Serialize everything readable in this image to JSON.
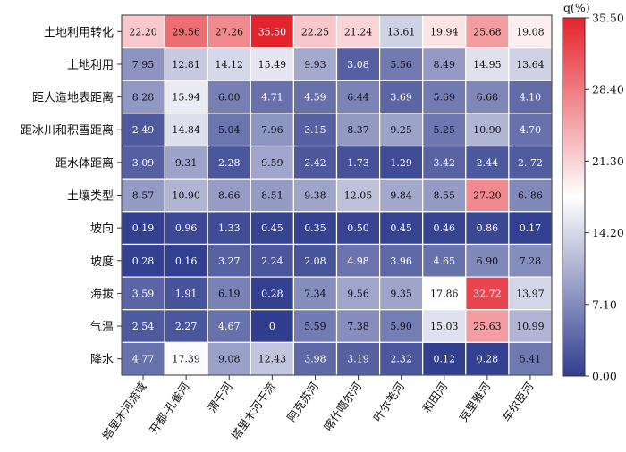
{
  "chart_data": {
    "type": "heatmap",
    "rows": [
      "土地利用转化",
      "土地利用",
      "距人造地表距离",
      "距冰川和积雪距离",
      "距水体距离",
      "土壤类型",
      "坡向",
      "坡度",
      "海拔",
      "气温",
      "降水"
    ],
    "columns": [
      "塔里木河流域",
      "开都-孔雀河",
      "渭干河",
      "塔里木河干流",
      "阿克苏河",
      "喀什噶尔河",
      "叶尔羌河",
      "和田河",
      "克里雅河",
      "车尔臣河"
    ],
    "values": [
      [
        22.2,
        29.56,
        27.26,
        35.5,
        22.25,
        21.24,
        13.61,
        19.94,
        25.68,
        19.08
      ],
      [
        7.95,
        12.81,
        14.12,
        15.49,
        9.93,
        3.08,
        5.56,
        8.49,
        14.95,
        13.64
      ],
      [
        8.28,
        15.94,
        6.0,
        4.71,
        4.59,
        6.44,
        3.69,
        5.69,
        6.68,
        4.1
      ],
      [
        2.49,
        14.84,
        5.04,
        7.96,
        3.15,
        8.37,
        9.25,
        5.25,
        10.9,
        4.7
      ],
      [
        3.09,
        9.31,
        2.28,
        9.59,
        2.42,
        1.73,
        1.29,
        3.42,
        2.44,
        2.72
      ],
      [
        8.57,
        10.9,
        8.66,
        8.51,
        9.38,
        12.05,
        9.84,
        8.55,
        27.2,
        6.86
      ],
      [
        0.19,
        0.96,
        1.33,
        0.45,
        0.35,
        0.5,
        0.45,
        0.46,
        0.86,
        0.17
      ],
      [
        0.28,
        0.16,
        3.27,
        2.24,
        2.08,
        4.98,
        3.96,
        4.65,
        6.9,
        7.28
      ],
      [
        3.59,
        1.91,
        6.19,
        0.28,
        7.34,
        9.56,
        9.35,
        17.86,
        32.72,
        13.97
      ],
      [
        2.54,
        2.27,
        4.67,
        0,
        5.59,
        7.38,
        5.9,
        15.03,
        25.63,
        10.99
      ],
      [
        4.77,
        17.39,
        9.08,
        12.43,
        3.98,
        3.19,
        2.32,
        0.12,
        0.28,
        5.41
      ]
    ],
    "labels": [
      [
        "22.20",
        "29.56",
        "27.26",
        "35.50",
        "22.25",
        "21.24",
        "13.61",
        "19.94",
        "25.68",
        "19.08"
      ],
      [
        "7.95",
        "12.81",
        "14.12",
        "15.49",
        "9.93",
        "3.08",
        "5.56",
        "8.49",
        "14.95",
        "13.64"
      ],
      [
        "8.28",
        "15.94",
        "6.00",
        "4.71",
        "4.59",
        "6.44",
        "3.69",
        "5.69",
        "6.68",
        "4.10"
      ],
      [
        "2.49",
        "14.84",
        "5.04",
        "7.96",
        "3.15",
        "8.37",
        "9.25",
        "5.25",
        "10.90",
        "4.70"
      ],
      [
        "3.09",
        "9.31",
        "2.28",
        "9.59",
        "2.42",
        "1.73",
        "1.29",
        "3.42",
        "2.44",
        "2. 72"
      ],
      [
        "8.57",
        "10.90",
        "8.66",
        "8.51",
        "9.38",
        "12.05",
        "9.84",
        "8.55",
        "27.20",
        "6. 86"
      ],
      [
        "0.19",
        "0.96",
        "1.33",
        "0.45",
        "0.35",
        "0.50",
        "0.45",
        "0.46",
        "0.86",
        "0.17"
      ],
      [
        "0.28",
        "0.16",
        "3.27",
        "2.24",
        "2.08",
        "4.98",
        "3.96",
        "4.65",
        "6.90",
        "7.28"
      ],
      [
        "3.59",
        "1.91",
        "6.19",
        "0.28",
        "7.34",
        "9.56",
        "9.35",
        "17.86",
        "32.72",
        "13.97"
      ],
      [
        "2.54",
        "2.27",
        "4.67",
        "0",
        "5.59",
        "7.38",
        "5.90",
        "15.03",
        "25.63",
        "10.99"
      ],
      [
        "4.77",
        "17.39",
        "9.08",
        "12.43",
        "3.98",
        "3.19",
        "2.32",
        "0.12",
        "0.28",
        "5.41"
      ]
    ],
    "colorbar": {
      "title": "q(%)",
      "min": 0,
      "max": 35.5,
      "ticks": [
        "35.50",
        "28.40",
        "21.30",
        "14.20",
        "7.10",
        "0.00"
      ],
      "tick_values": [
        35.5,
        28.4,
        21.3,
        14.2,
        7.1,
        0
      ],
      "colors": [
        "#313e8e",
        "#ffffff",
        "#e5232d"
      ]
    },
    "grid": true
  }
}
